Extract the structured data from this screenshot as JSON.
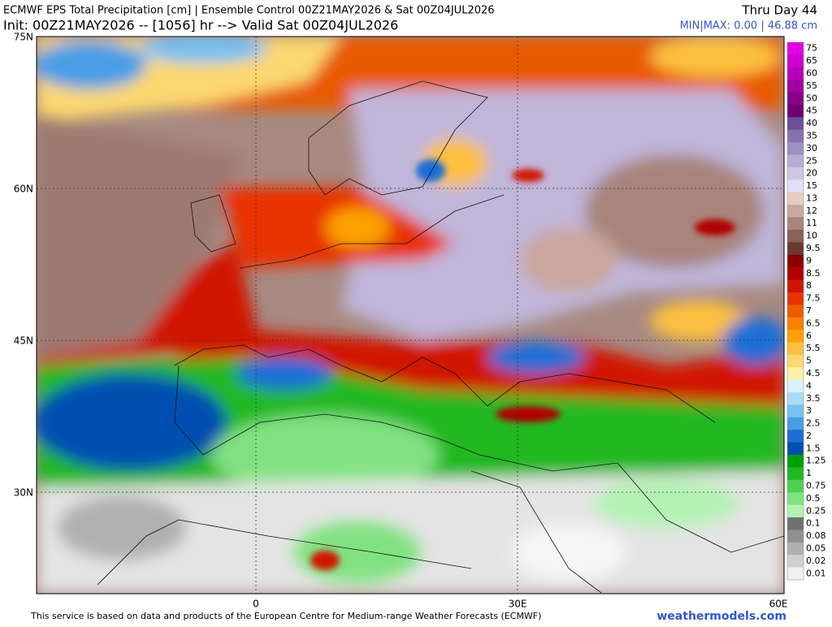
{
  "header": {
    "title": "ECMWF EPS Total Precipitation [cm] | Ensemble Control 00Z21MAY2026 & Sat 00Z04JUL2026",
    "subtitle": "Init: 00Z21MAY2026 -- [1056] hr --> Valid Sat 00Z04JUL2026",
    "period": "Thru Day 44",
    "minmax": "MIN|MAX: 0.00 | 46.88 cm"
  },
  "axes": {
    "lat_labels": [
      "75N",
      "60N",
      "45N",
      "30N"
    ],
    "lon_labels": [
      "0",
      "30E",
      "60E"
    ]
  },
  "legend": {
    "levels": [
      {
        "value": 75,
        "color": "#e600e6"
      },
      {
        "value": 65,
        "color": "#d000d0"
      },
      {
        "value": 60,
        "color": "#b800b8"
      },
      {
        "value": 55,
        "color": "#a000a0"
      },
      {
        "value": 50,
        "color": "#880088"
      },
      {
        "value": 45,
        "color": "#700070"
      },
      {
        "value": 40,
        "color": "#6c4f96"
      },
      {
        "value": 35,
        "color": "#8672b0"
      },
      {
        "value": 30,
        "color": "#9f8fc4"
      },
      {
        "value": 25,
        "color": "#b8acd6"
      },
      {
        "value": 20,
        "color": "#cdc6e4"
      },
      {
        "value": 15,
        "color": "#e2ddef"
      },
      {
        "value": 13,
        "color": "#e8cbc3"
      },
      {
        "value": 12,
        "color": "#caa79e"
      },
      {
        "value": 11,
        "color": "#a9847c"
      },
      {
        "value": 10,
        "color": "#8a6058"
      },
      {
        "value": 9.5,
        "color": "#6a3a32"
      },
      {
        "value": 9,
        "color": "#8b0000"
      },
      {
        "value": 8.5,
        "color": "#b00000"
      },
      {
        "value": 8,
        "color": "#d01400"
      },
      {
        "value": 7.5,
        "color": "#e83200"
      },
      {
        "value": 7,
        "color": "#f05a00"
      },
      {
        "value": 6.5,
        "color": "#f88200"
      },
      {
        "value": 6,
        "color": "#fca200"
      },
      {
        "value": 5.5,
        "color": "#fcc040"
      },
      {
        "value": 5,
        "color": "#fcd870"
      },
      {
        "value": 4.5,
        "color": "#fcf0a8"
      },
      {
        "value": 4,
        "color": "#d8f2fc"
      },
      {
        "value": 3.5,
        "color": "#a8dcf8"
      },
      {
        "value": 3,
        "color": "#78c0f0"
      },
      {
        "value": 2.5,
        "color": "#489ee6"
      },
      {
        "value": 2,
        "color": "#1a6ed6"
      },
      {
        "value": 1.5,
        "color": "#0050b0"
      },
      {
        "value": 1.25,
        "color": "#00a000"
      },
      {
        "value": 1,
        "color": "#22b822"
      },
      {
        "value": 0.75,
        "color": "#50d050"
      },
      {
        "value": 0.5,
        "color": "#82e282"
      },
      {
        "value": 0.25,
        "color": "#b4f2b4"
      },
      {
        "value": 0.1,
        "color": "#707070"
      },
      {
        "value": 0.08,
        "color": "#909090"
      },
      {
        "value": 0.05,
        "color": "#b0b0b0"
      },
      {
        "value": 0.02,
        "color": "#d0d0d0"
      },
      {
        "value": 0.01,
        "color": "#f0f0f0"
      }
    ]
  },
  "footer": {
    "credit": "This service is based on data and products of the European Centre for Medium-range Weather Forecasts (ECMWF)",
    "site": "weathermodels.com"
  }
}
